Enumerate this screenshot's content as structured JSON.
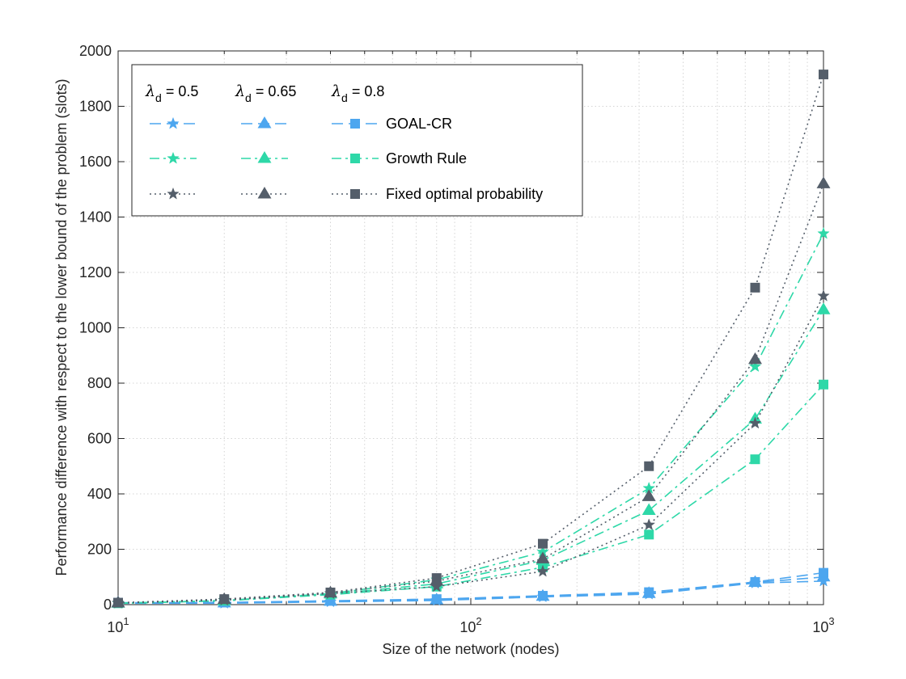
{
  "chart_data": {
    "type": "line",
    "xscale": "log",
    "x": [
      10,
      20,
      40,
      80,
      160,
      320,
      640,
      1000
    ],
    "xlim": [
      10,
      1000
    ],
    "ylim": [
      0,
      2000
    ],
    "xlabel": "Size of the network (nodes)",
    "ylabel": "Performance difference with respect to the lower bound of the problem (slots)",
    "xticks": [
      {
        "value": 10,
        "base": "10",
        "exp": "1"
      },
      {
        "value": 100,
        "base": "10",
        "exp": "2"
      },
      {
        "value": 1000,
        "base": "10",
        "exp": "3"
      }
    ],
    "yticks": [
      "0",
      "200",
      "400",
      "600",
      "800",
      "1000",
      "1200",
      "1400",
      "1600",
      "1800",
      "2000"
    ],
    "grid": true,
    "legend_position": "top-left",
    "legend": {
      "lambda_headers": [
        {
          "symbol": "λ",
          "sub": "d",
          "value": "= 0.5"
        },
        {
          "symbol": "λ",
          "sub": "d",
          "value": "= 0.65"
        },
        {
          "symbol": "λ",
          "sub": "d",
          "value": "= 0.8"
        }
      ],
      "rows": [
        "GOAL-CR",
        "Growth Rule",
        "Fixed optimal probability"
      ]
    },
    "series": [
      {
        "method": "GOAL-CR",
        "lambda": "0.5",
        "marker": "star",
        "dash": "dashed",
        "color": "#4da6ef",
        "values": [
          5,
          5,
          10,
          15,
          28,
          38,
          78,
          85
        ]
      },
      {
        "method": "GOAL-CR",
        "lambda": "0.65",
        "marker": "triangle",
        "dash": "dashed",
        "color": "#4da6ef",
        "values": [
          6,
          6,
          12,
          17,
          30,
          40,
          80,
          100
        ]
      },
      {
        "method": "GOAL-CR",
        "lambda": "0.8",
        "marker": "square",
        "dash": "dashed",
        "color": "#4da6ef",
        "values": [
          7,
          8,
          14,
          20,
          32,
          45,
          82,
          115
        ]
      },
      {
        "method": "Growth Rule",
        "lambda": "0.5",
        "marker": "star",
        "dash": "dashdot",
        "color": "#2ed8a8",
        "values": [
          5,
          15,
          40,
          90,
          190,
          420,
          860,
          1340
        ]
      },
      {
        "method": "Growth Rule",
        "lambda": "0.65",
        "marker": "triangle",
        "dash": "dashdot",
        "color": "#2ed8a8",
        "values": [
          5,
          14,
          38,
          75,
          160,
          340,
          670,
          1065
        ]
      },
      {
        "method": "Growth Rule",
        "lambda": "0.8",
        "marker": "square",
        "dash": "dashdot",
        "color": "#2ed8a8",
        "values": [
          5,
          14,
          36,
          65,
          135,
          253,
          525,
          795
        ]
      },
      {
        "method": "Fixed optimal probability",
        "lambda": "0.5",
        "marker": "star",
        "dash": "dotted",
        "color": "#545e6a",
        "values": [
          6,
          16,
          40,
          65,
          120,
          288,
          655,
          1115
        ]
      },
      {
        "method": "Fixed optimal probability",
        "lambda": "0.65",
        "marker": "triangle",
        "dash": "dotted",
        "color": "#545e6a",
        "values": [
          6,
          18,
          42,
          85,
          165,
          390,
          885,
          1520
        ]
      },
      {
        "method": "Fixed optimal probability",
        "lambda": "0.8",
        "marker": "square",
        "dash": "dotted",
        "color": "#545e6a",
        "values": [
          7,
          20,
          44,
          96,
          220,
          500,
          1145,
          1915
        ]
      }
    ]
  }
}
